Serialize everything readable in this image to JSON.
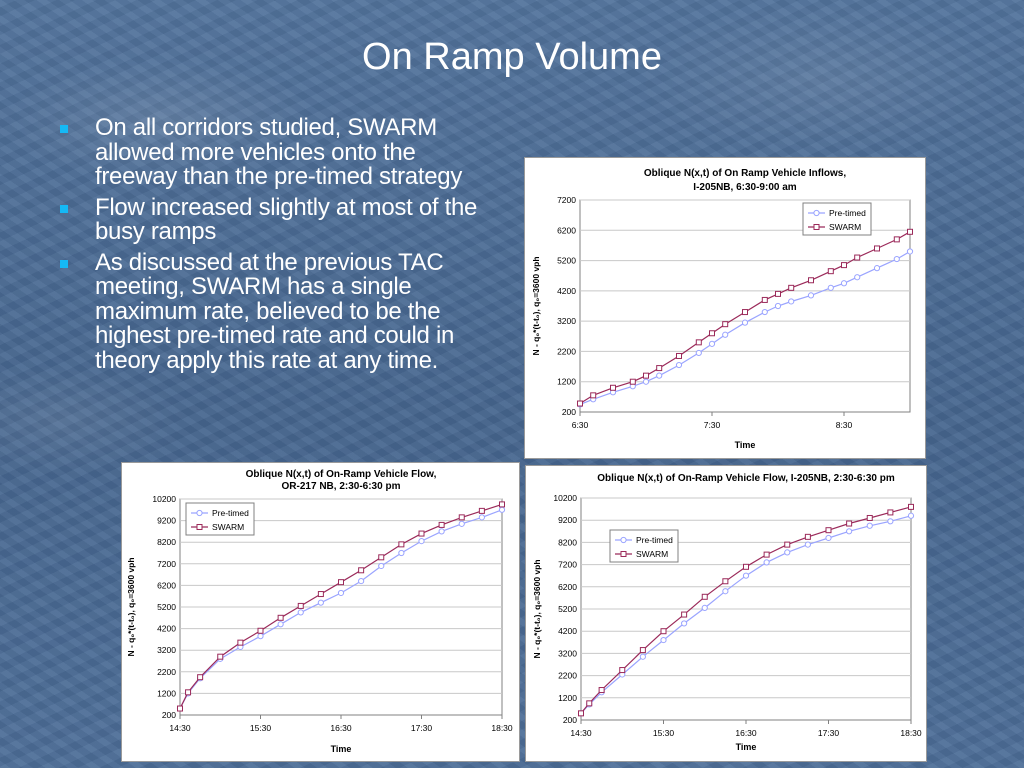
{
  "slide": {
    "title": "On Ramp Volume",
    "bullets": [
      "On all corridors studied, SWARM allowed more vehicles onto the freeway than the pre-timed strategy",
      "Flow increased slightly at most of the busy ramps",
      "As discussed at the previous TAC meeting, SWARM has a single maximum rate, believed to be the highest pre-timed rate and could in theory apply this rate at any time."
    ],
    "colors": {
      "background": "#4a6b95",
      "title_text": "#ffffff",
      "bullet_marker": "#15b9f5",
      "pre_timed_series": "#9aa4ff",
      "swarm_series": "#9b2a5a"
    }
  },
  "chart_data": [
    {
      "type": "line",
      "title": [
        "Oblique N(x,t) of On Ramp Vehicle Inflows,",
        "I-205NB,  6:30-9:00 am"
      ],
      "xlabel": "Time",
      "ylabel": "N - q₀*(t-t₀), q₀=3600 vph",
      "x_range_hours": [
        6.5,
        9.0
      ],
      "x_ticks": [
        "6:30",
        "7:30",
        "8:30"
      ],
      "y_ticks": [
        200,
        1200,
        2200,
        3200,
        4200,
        5200,
        6200,
        7200
      ],
      "ylim": [
        200,
        7200
      ],
      "legend": "top-right",
      "grid": true,
      "series": [
        {
          "name": "Pre-timed",
          "x_hours": [
            6.5,
            6.6,
            6.75,
            6.9,
            7.0,
            7.1,
            7.25,
            7.4,
            7.5,
            7.6,
            7.75,
            7.9,
            8.0,
            8.1,
            8.25,
            8.4,
            8.5,
            8.6,
            8.75,
            8.9,
            9.0
          ],
          "values": [
            450,
            620,
            850,
            1050,
            1200,
            1400,
            1750,
            2150,
            2450,
            2750,
            3150,
            3500,
            3700,
            3850,
            4050,
            4300,
            4450,
            4650,
            4950,
            5250,
            5500
          ]
        },
        {
          "name": "SWARM",
          "x_hours": [
            6.5,
            6.6,
            6.75,
            6.9,
            7.0,
            7.1,
            7.25,
            7.4,
            7.5,
            7.6,
            7.75,
            7.9,
            8.0,
            8.1,
            8.25,
            8.4,
            8.5,
            8.6,
            8.75,
            8.9,
            9.0
          ],
          "values": [
            480,
            750,
            1000,
            1200,
            1400,
            1650,
            2050,
            2500,
            2800,
            3100,
            3500,
            3900,
            4100,
            4300,
            4550,
            4850,
            5050,
            5300,
            5600,
            5900,
            6150
          ]
        }
      ]
    },
    {
      "type": "line",
      "title": [
        "Oblique N(x,t) of On-Ramp Vehicle Flow,",
        "OR-217 NB, 2:30-6:30 pm"
      ],
      "xlabel": "Time",
      "ylabel": "N - q₀*(t-t₀), q₀=3600 vph",
      "x_range_hours": [
        14.5,
        18.5
      ],
      "x_ticks": [
        "14:30",
        "15:30",
        "16:30",
        "17:30",
        "18:30"
      ],
      "y_ticks": [
        200,
        1200,
        2200,
        3200,
        4200,
        5200,
        6200,
        7200,
        8200,
        9200,
        10200
      ],
      "ylim": [
        200,
        10200
      ],
      "legend": "top-left",
      "grid": true,
      "series": [
        {
          "name": "Pre-timed",
          "x_hours": [
            14.5,
            14.6,
            14.75,
            15.0,
            15.25,
            15.5,
            15.75,
            16.0,
            16.25,
            16.5,
            16.75,
            17.0,
            17.25,
            17.5,
            17.75,
            18.0,
            18.25,
            18.5
          ],
          "values": [
            500,
            1200,
            1900,
            2800,
            3350,
            3850,
            4400,
            4950,
            5400,
            5850,
            6400,
            7100,
            7700,
            8250,
            8700,
            9050,
            9350,
            9700
          ]
        },
        {
          "name": "SWARM",
          "x_hours": [
            14.5,
            14.6,
            14.75,
            15.0,
            15.25,
            15.5,
            15.75,
            16.0,
            16.25,
            16.5,
            16.75,
            17.0,
            17.25,
            17.5,
            17.75,
            18.0,
            18.25,
            18.5
          ],
          "values": [
            500,
            1250,
            1950,
            2900,
            3550,
            4100,
            4700,
            5250,
            5800,
            6350,
            6900,
            7500,
            8100,
            8600,
            9000,
            9350,
            9650,
            9950
          ]
        }
      ]
    },
    {
      "type": "line",
      "title": [
        "Oblique N(x,t) of On-Ramp Vehicle Flow, I-205NB, 2:30-6:30 pm"
      ],
      "xlabel": "Time",
      "ylabel": "N - q₀*(t-t₀), q₀=3600 vph",
      "x_range_hours": [
        14.5,
        18.5
      ],
      "x_ticks": [
        "14:30",
        "15:30",
        "16:30",
        "17:30",
        "18:30"
      ],
      "y_ticks": [
        200,
        1200,
        2200,
        3200,
        4200,
        5200,
        6200,
        7200,
        8200,
        9200,
        10200
      ],
      "ylim": [
        200,
        10200
      ],
      "legend": "left",
      "grid": true,
      "series": [
        {
          "name": "Pre-timed",
          "x_hours": [
            14.5,
            14.6,
            14.75,
            15.0,
            15.25,
            15.5,
            15.75,
            16.0,
            16.25,
            16.5,
            16.75,
            17.0,
            17.25,
            17.5,
            17.75,
            18.0,
            18.25,
            18.5
          ],
          "values": [
            500,
            900,
            1450,
            2250,
            3050,
            3800,
            4550,
            5250,
            6000,
            6700,
            7300,
            7750,
            8100,
            8400,
            8700,
            8950,
            9150,
            9400
          ]
        },
        {
          "name": "SWARM",
          "x_hours": [
            14.5,
            14.6,
            14.75,
            15.0,
            15.25,
            15.5,
            15.75,
            16.0,
            16.25,
            16.5,
            16.75,
            17.0,
            17.25,
            17.5,
            17.75,
            18.0,
            18.25,
            18.5
          ],
          "values": [
            500,
            950,
            1550,
            2450,
            3350,
            4200,
            4950,
            5750,
            6450,
            7100,
            7650,
            8100,
            8450,
            8750,
            9050,
            9300,
            9550,
            9800
          ]
        }
      ]
    }
  ]
}
